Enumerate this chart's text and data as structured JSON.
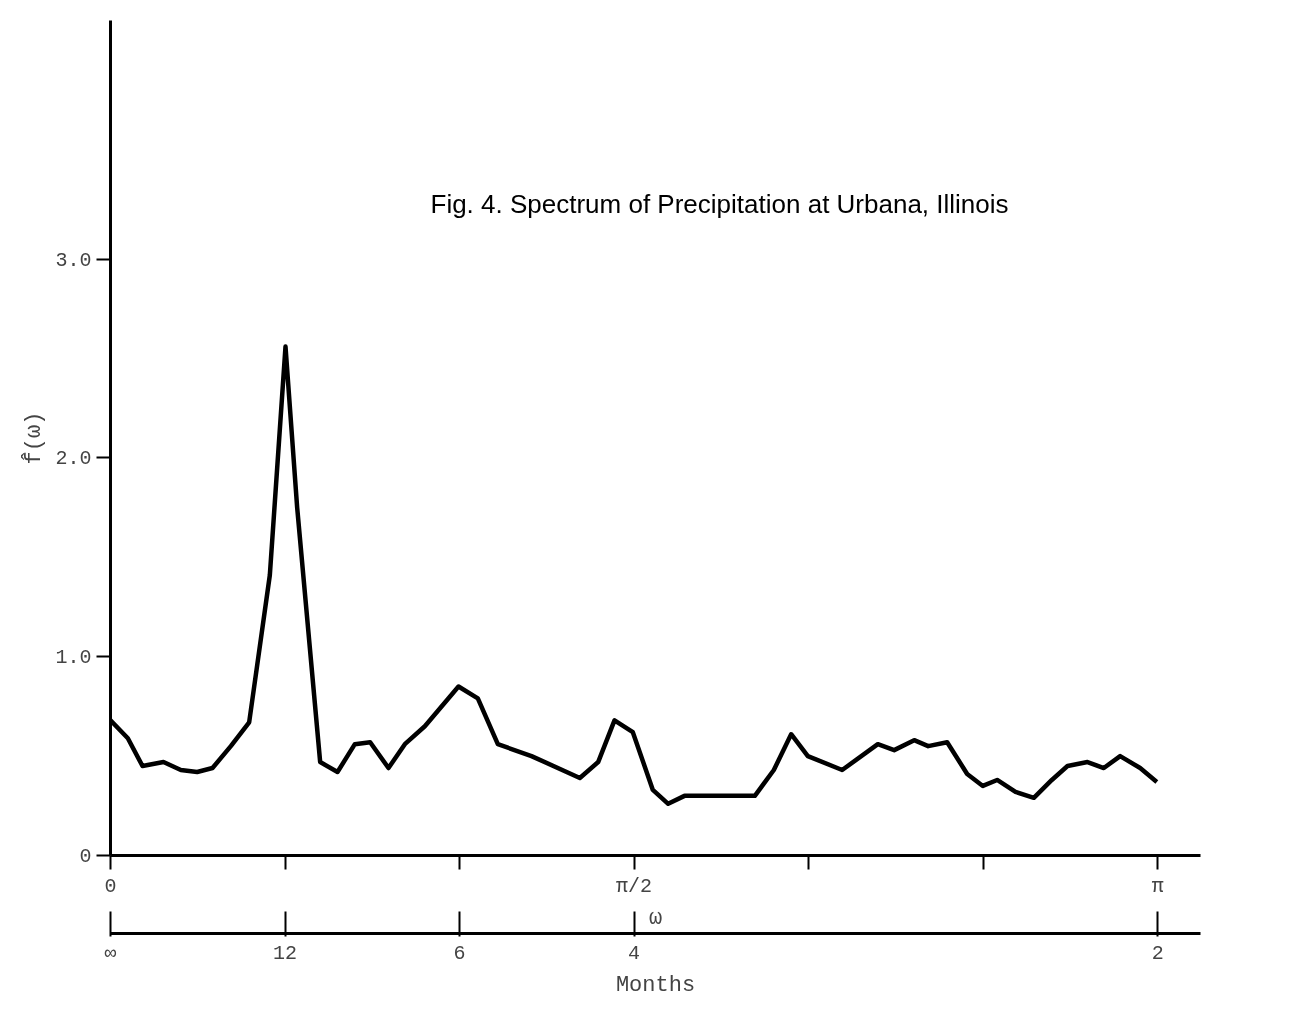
{
  "chart_data": {
    "type": "line",
    "title": "Fig. 4.  Spectrum of Precipitation at Urbana, Illinois",
    "xlabel": "ω",
    "ylabel": "f̂(ω)",
    "x2label": "Months",
    "x": [
      0,
      0.052,
      0.096,
      0.159,
      0.211,
      0.26,
      0.306,
      0.361,
      0.416,
      0.478,
      0.525,
      0.56,
      0.629,
      0.681,
      0.733,
      0.779,
      0.834,
      0.883,
      0.943,
      1.044,
      1.102,
      1.162,
      1.263,
      1.408,
      1.463,
      1.512,
      1.567,
      1.627,
      1.673,
      1.722,
      1.933,
      1.99,
      2.042,
      2.092,
      2.195,
      2.302,
      2.351,
      2.411,
      2.453,
      2.51,
      2.57,
      2.617,
      2.66,
      2.715,
      2.77,
      2.824,
      2.871,
      2.931,
      2.98,
      3.029,
      3.089,
      3.139
    ],
    "series": [
      {
        "color": "#000000",
        "values": [
          0.68,
          0.59,
          0.45,
          0.47,
          0.43,
          0.42,
          0.44,
          0.55,
          0.67,
          1.41,
          2.56,
          1.75,
          0.47,
          0.42,
          0.56,
          0.57,
          0.44,
          0.56,
          0.65,
          0.85,
          0.79,
          0.56,
          0.5,
          0.39,
          0.47,
          0.68,
          0.62,
          0.33,
          0.26,
          0.3,
          0.3,
          0.43,
          0.61,
          0.5,
          0.43,
          0.56,
          0.53,
          0.58,
          0.55,
          0.57,
          0.41,
          0.35,
          0.38,
          0.32,
          0.29,
          0.38,
          0.45,
          0.47,
          0.44,
          0.5,
          0.44,
          0.37
        ]
      }
    ],
    "xlim": [
      0,
      3.27
    ],
    "ylim": [
      0,
      4.2
    ],
    "xticks": [
      {
        "value": 0,
        "label": "0"
      },
      {
        "value": 0.5236,
        "label": null
      },
      {
        "value": 1.0472,
        "label": null
      },
      {
        "value": 1.5708,
        "label": "π/2"
      },
      {
        "value": 2.0944,
        "label": null
      },
      {
        "value": 2.618,
        "label": null
      },
      {
        "value": 3.1416,
        "label": "π"
      }
    ],
    "yticks": [
      {
        "value": 0,
        "label": "0"
      },
      {
        "value": 1,
        "label": "1.0"
      },
      {
        "value": 2,
        "label": "2.0"
      },
      {
        "value": 3,
        "label": "3.0"
      }
    ],
    "annotations": [
      {
        "text": "∞",
        "x": 0
      },
      {
        "text": "12",
        "x": 0.5236
      },
      {
        "text": "6",
        "x": 1.0472
      },
      {
        "text": "4",
        "x": 1.5708
      },
      {
        "text": "2",
        "x": 3.1416
      }
    ],
    "grid": false,
    "line_style": "solid",
    "marker": "none"
  }
}
